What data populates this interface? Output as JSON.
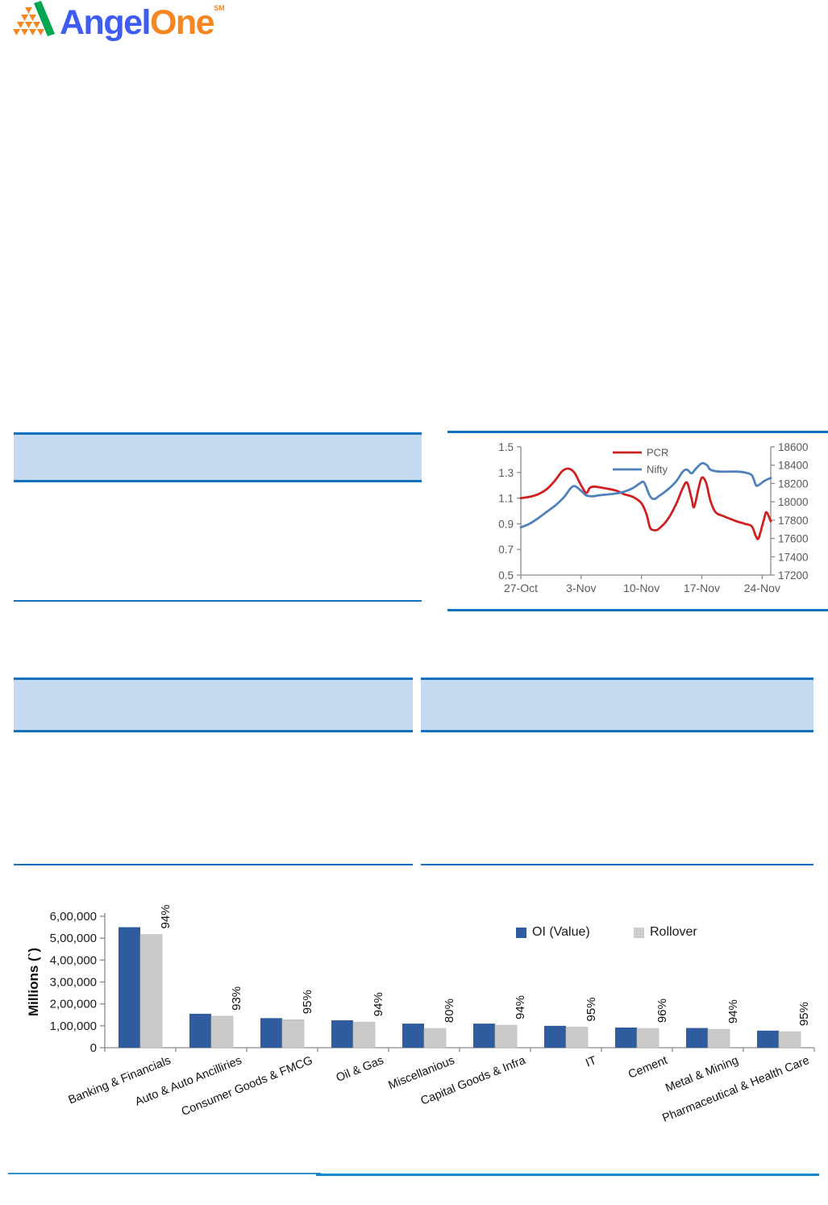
{
  "logo": {
    "angel": "Angel",
    "one": "One",
    "trademark": "SM"
  },
  "colors": {
    "section_fill": "#C5D9F1",
    "section_border": "#1271BE",
    "footer_rule_left": "#2F90D1",
    "footer_rule_right": "#0B86D1",
    "pcr_red": "#CE2020",
    "nifty_blue": "#4F81BD",
    "oi_blue": "#2E5C9E",
    "rollover_gray": "#C9C9C9",
    "logo_blue": "#3E5BF2",
    "logo_orange": "#F6861F",
    "logo_green": "#00A651"
  },
  "chart_data": [
    {
      "type": "line",
      "title": "",
      "legend_position": "inside-top",
      "x_ticks": [
        "27-Oct",
        "3-Nov",
        "10-Nov",
        "17-Nov",
        "24-Nov"
      ],
      "x_tick_days": [
        0,
        7,
        14,
        21,
        28
      ],
      "x_domain": [
        0,
        29
      ],
      "left_axis": {
        "min": 0.5,
        "max": 1.5,
        "ticks": [
          "0.5",
          "0.7",
          "0.9",
          "1.1",
          "1.3",
          "1.5"
        ]
      },
      "right_axis": {
        "min": 17200,
        "max": 18600,
        "ticks": [
          "17200",
          "17400",
          "17600",
          "17800",
          "18000",
          "18200",
          "18400",
          "18600"
        ]
      },
      "series": [
        {
          "name": "PCR",
          "axis": "left",
          "color": "#CE2020",
          "points": [
            [
              0,
              1.1
            ],
            [
              1,
              1.11
            ],
            [
              2,
              1.13
            ],
            [
              3,
              1.17
            ],
            [
              4,
              1.24
            ],
            [
              4.8,
              1.31
            ],
            [
              5.5,
              1.33
            ],
            [
              6.2,
              1.3
            ],
            [
              7,
              1.2
            ],
            [
              7.6,
              1.14
            ],
            [
              8,
              1.18
            ],
            [
              8.5,
              1.19
            ],
            [
              9.5,
              1.18
            ],
            [
              11,
              1.16
            ],
            [
              12,
              1.13
            ],
            [
              13,
              1.11
            ],
            [
              14,
              1.06
            ],
            [
              14.6,
              0.97
            ],
            [
              15,
              0.87
            ],
            [
              15.5,
              0.85
            ],
            [
              16,
              0.86
            ],
            [
              17,
              0.93
            ],
            [
              18,
              1.05
            ],
            [
              18.8,
              1.18
            ],
            [
              19.3,
              1.22
            ],
            [
              19.8,
              1.1
            ],
            [
              20.1,
              1.03
            ],
            [
              20.6,
              1.17
            ],
            [
              21,
              1.26
            ],
            [
              21.5,
              1.22
            ],
            [
              22,
              1.08
            ],
            [
              22.6,
              0.99
            ],
            [
              23.5,
              0.96
            ],
            [
              25,
              0.92
            ],
            [
              26,
              0.9
            ],
            [
              26.8,
              0.88
            ],
            [
              27.3,
              0.8
            ],
            [
              27.6,
              0.79
            ],
            [
              28.2,
              0.93
            ],
            [
              28.5,
              0.99
            ],
            [
              29,
              0.92
            ]
          ]
        },
        {
          "name": "Nifty",
          "axis": "right",
          "color": "#4F81BD",
          "points": [
            [
              0,
              17720
            ],
            [
              1,
              17760
            ],
            [
              2,
              17820
            ],
            [
              3,
              17890
            ],
            [
              4,
              17960
            ],
            [
              5,
              18050
            ],
            [
              5.8,
              18150
            ],
            [
              6.3,
              18170
            ],
            [
              7,
              18120
            ],
            [
              7.6,
              18070
            ],
            [
              8.3,
              18060
            ],
            [
              9,
              18070
            ],
            [
              10,
              18080
            ],
            [
              11,
              18090
            ],
            [
              12,
              18110
            ],
            [
              13,
              18150
            ],
            [
              13.8,
              18200
            ],
            [
              14.3,
              18210
            ],
            [
              15,
              18060
            ],
            [
              15.5,
              18030
            ],
            [
              16,
              18060
            ],
            [
              17,
              18130
            ],
            [
              18,
              18220
            ],
            [
              18.8,
              18330
            ],
            [
              19.3,
              18350
            ],
            [
              19.8,
              18310
            ],
            [
              20.3,
              18360
            ],
            [
              21,
              18420
            ],
            [
              21.6,
              18400
            ],
            [
              22,
              18350
            ],
            [
              23,
              18330
            ],
            [
              25,
              18330
            ],
            [
              26,
              18320
            ],
            [
              26.8,
              18290
            ],
            [
              27.3,
              18180
            ],
            [
              27.7,
              18190
            ],
            [
              28.3,
              18230
            ],
            [
              29,
              18260
            ]
          ]
        }
      ]
    },
    {
      "type": "bar",
      "ylabel": "Millions (`)",
      "ylim": [
        0,
        600000
      ],
      "y_tick_labels": [
        "0",
        "1,00,000",
        "2,00,000",
        "3,00,000",
        "4,00,000",
        "5,00,000",
        "6,00,000"
      ],
      "categories": [
        "Banking & Financials",
        "Auto & Auto Ancilliries",
        "Consumer Goods & FMCG",
        "Oil & Gas",
        "Miscellanious",
        "Capital Goods & Infra",
        "IT",
        "Cement",
        "Metal & Mining",
        "Pharmaceutical & Health Care"
      ],
      "series": [
        {
          "name": "OI (Value)",
          "color": "#2E5C9E",
          "values": [
            550000,
            155000,
            135000,
            125000,
            110000,
            110000,
            100000,
            92000,
            90000,
            78000
          ]
        },
        {
          "name": "Rollover",
          "color": "#C9C9C9",
          "values": [
            517000,
            144000,
            128000,
            117000,
            88000,
            103000,
            94000,
            88000,
            84000,
            73000
          ]
        }
      ],
      "bar_labels": [
        "94%",
        "93%",
        "95%",
        "94%",
        "80%",
        "94%",
        "95%",
        "96%",
        "94%",
        "95%"
      ],
      "legend": [
        "OI (Value)",
        "Rollover"
      ],
      "legend_position": "top-right"
    }
  ]
}
